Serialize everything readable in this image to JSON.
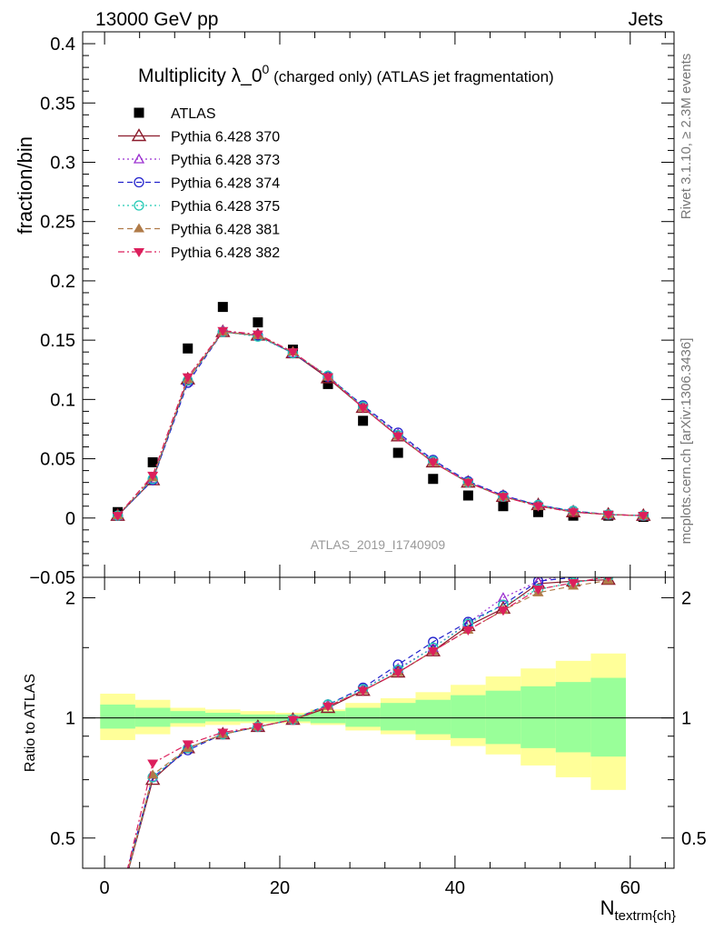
{
  "header": {
    "energy": "13000 GeV pp",
    "process": "Jets"
  },
  "side_labels": {
    "rivet": "Rivet 3.1.10, ≥ 2.3M events",
    "source": "mcplots.cern.ch [arXiv:1306.3436]"
  },
  "chart_data": [
    {
      "type": "scatter",
      "panel": "main",
      "title_main": "Multiplicity λ_0",
      "title_sup": "0",
      "title_suffix": " (charged only) (ATLAS jet fragmentation)",
      "ylabel": "fraction/bin",
      "watermark": "ATLAS_2019_I1740909",
      "xlim": [
        -2.5,
        65
      ],
      "ylim": [
        -0.05,
        0.41
      ],
      "yticks": [
        -0.05,
        0,
        0.05,
        0.1,
        0.15,
        0.2,
        0.25,
        0.3,
        0.35,
        0.4
      ],
      "ytick_labels": [
        "−0.05",
        "0",
        "0.05",
        "0.1",
        "0.15",
        "0.2",
        "0.25",
        "0.3",
        "0.35",
        "0.4"
      ],
      "x": [
        1.5,
        5.5,
        9.5,
        13.5,
        17.5,
        21.5,
        25.5,
        29.5,
        33.5,
        37.5,
        41.5,
        45.5,
        49.5,
        53.5,
        57.5,
        61.5
      ],
      "legend": [
        {
          "name": "ATLAS",
          "color": "#000000",
          "marker": "square",
          "dash": "none"
        },
        {
          "name": "Pythia 6.428 370",
          "color": "#8b1a2b",
          "marker": "triangle-open",
          "dash": "solid"
        },
        {
          "name": "Pythia 6.428 373",
          "color": "#9b30d0",
          "marker": "triangle-open-small",
          "dash": "dotted"
        },
        {
          "name": "Pythia 6.428 374",
          "color": "#2222cc",
          "marker": "circle-open",
          "dash": "dashed"
        },
        {
          "name": "Pythia 6.428 375",
          "color": "#22c9b5",
          "marker": "circle-open",
          "dash": "dotted"
        },
        {
          "name": "Pythia 6.428 381",
          "color": "#b07b48",
          "marker": "triangle-filled",
          "dash": "dashed"
        },
        {
          "name": "Pythia 6.428 382",
          "color": "#dc1f5c",
          "marker": "triangle-down-filled",
          "dash": "dashdot"
        }
      ],
      "series": [
        {
          "name": "ATLAS",
          "values": [
            0.005,
            0.047,
            0.143,
            0.178,
            0.165,
            0.142,
            0.113,
            0.082,
            0.055,
            0.033,
            0.019,
            0.01,
            0.005,
            0.002,
            0.002,
            0.001
          ]
        },
        {
          "name": "Pythia 6.428 370",
          "values": [
            0.002,
            0.032,
            0.117,
            0.157,
            0.154,
            0.139,
            0.118,
            0.093,
            0.069,
            0.047,
            0.03,
            0.018,
            0.011,
            0.005,
            0.003,
            0.002
          ]
        },
        {
          "name": "Pythia 6.428 373",
          "values": [
            0.002,
            0.033,
            0.115,
            0.158,
            0.154,
            0.139,
            0.12,
            0.094,
            0.071,
            0.048,
            0.031,
            0.019,
            0.011,
            0.006,
            0.003,
            0.002
          ]
        },
        {
          "name": "Pythia 6.428 374",
          "values": [
            0.002,
            0.032,
            0.114,
            0.157,
            0.154,
            0.139,
            0.119,
            0.095,
            0.072,
            0.049,
            0.031,
            0.019,
            0.011,
            0.006,
            0.003,
            0.002
          ]
        },
        {
          "name": "Pythia 6.428 375",
          "values": [
            0.002,
            0.033,
            0.116,
            0.157,
            0.153,
            0.139,
            0.12,
            0.094,
            0.07,
            0.048,
            0.03,
            0.018,
            0.011,
            0.006,
            0.003,
            0.002
          ]
        },
        {
          "name": "Pythia 6.428 381",
          "values": [
            0.002,
            0.034,
            0.117,
            0.157,
            0.154,
            0.14,
            0.119,
            0.093,
            0.069,
            0.047,
            0.03,
            0.018,
            0.01,
            0.005,
            0.003,
            0.002
          ]
        },
        {
          "name": "Pythia 6.428 382",
          "values": [
            0.002,
            0.036,
            0.119,
            0.158,
            0.155,
            0.14,
            0.119,
            0.093,
            0.069,
            0.047,
            0.03,
            0.018,
            0.01,
            0.005,
            0.003,
            0.002
          ]
        }
      ]
    },
    {
      "type": "line",
      "panel": "ratio",
      "ylabel": "Ratio to ATLAS",
      "xlabel_main": "N",
      "xlabel_sub": "textrm{ch}",
      "xlim": [
        -2.5,
        65
      ],
      "ylim": [
        0.42,
        2.25
      ],
      "scale": "log",
      "yticks": [
        0.5,
        1,
        2
      ],
      "ytick_labels": [
        "0.5",
        "1",
        "2"
      ],
      "xticks": [
        0,
        20,
        40,
        60
      ],
      "xtick_labels": [
        "0",
        "20",
        "40",
        "60"
      ],
      "band_edges": [
        -0.5,
        3.5,
        7.5,
        11.5,
        15.5,
        19.5,
        23.5,
        27.5,
        31.5,
        35.5,
        39.5,
        43.5,
        47.5,
        51.5,
        55.5,
        59.5
      ],
      "band_inner": [
        [
          0.94,
          1.08
        ],
        [
          0.95,
          1.06
        ],
        [
          0.97,
          1.04
        ],
        [
          0.98,
          1.03
        ],
        [
          0.98,
          1.02
        ],
        [
          0.98,
          1.02
        ],
        [
          0.97,
          1.04
        ],
        [
          0.95,
          1.06
        ],
        [
          0.93,
          1.09
        ],
        [
          0.91,
          1.11
        ],
        [
          0.89,
          1.14
        ],
        [
          0.86,
          1.17
        ],
        [
          0.84,
          1.2
        ],
        [
          0.82,
          1.23
        ],
        [
          0.8,
          1.26
        ]
      ],
      "band_outer": [
        [
          0.88,
          1.15
        ],
        [
          0.91,
          1.11
        ],
        [
          0.95,
          1.06
        ],
        [
          0.96,
          1.05
        ],
        [
          0.97,
          1.04
        ],
        [
          0.97,
          1.03
        ],
        [
          0.96,
          1.05
        ],
        [
          0.93,
          1.09
        ],
        [
          0.91,
          1.12
        ],
        [
          0.88,
          1.16
        ],
        [
          0.85,
          1.21
        ],
        [
          0.81,
          1.27
        ],
        [
          0.76,
          1.33
        ],
        [
          0.71,
          1.39
        ],
        [
          0.66,
          1.45
        ]
      ],
      "x": [
        1.5,
        5.5,
        9.5,
        13.5,
        17.5,
        21.5,
        25.5,
        29.5,
        33.5,
        37.5,
        41.5,
        45.5,
        49.5,
        53.5,
        57.5
      ],
      "series": [
        {
          "name": "Pythia 6.428 370",
          "values": [
            0.33,
            0.7,
            0.84,
            0.91,
            0.95,
            0.99,
            1.06,
            1.17,
            1.3,
            1.47,
            1.7,
            1.88,
            2.17,
            2.2,
            2.22
          ]
        },
        {
          "name": "Pythia 6.428 373",
          "values": [
            0.33,
            0.71,
            0.84,
            0.91,
            0.95,
            0.99,
            1.08,
            1.18,
            1.33,
            1.5,
            1.73,
            2.0,
            2.2,
            2.3,
            2.4
          ]
        },
        {
          "name": "Pythia 6.428 374",
          "values": [
            0.34,
            0.71,
            0.83,
            0.91,
            0.95,
            0.99,
            1.08,
            1.19,
            1.36,
            1.55,
            1.74,
            1.92,
            2.2,
            2.25,
            2.3
          ]
        },
        {
          "name": "Pythia 6.428 375",
          "values": [
            0.33,
            0.71,
            0.84,
            0.91,
            0.95,
            0.99,
            1.08,
            1.18,
            1.32,
            1.5,
            1.72,
            1.92,
            2.1,
            2.18,
            2.26
          ]
        },
        {
          "name": "Pythia 6.428 381",
          "values": [
            0.33,
            0.72,
            0.84,
            0.91,
            0.95,
            0.99,
            1.07,
            1.17,
            1.3,
            1.47,
            1.66,
            1.86,
            2.06,
            2.14,
            2.21
          ]
        },
        {
          "name": "Pythia 6.428 382",
          "values": [
            0.33,
            0.77,
            0.86,
            0.92,
            0.95,
            0.99,
            1.07,
            1.17,
            1.3,
            1.47,
            1.66,
            1.86,
            2.1,
            2.18,
            2.26
          ]
        }
      ]
    }
  ]
}
